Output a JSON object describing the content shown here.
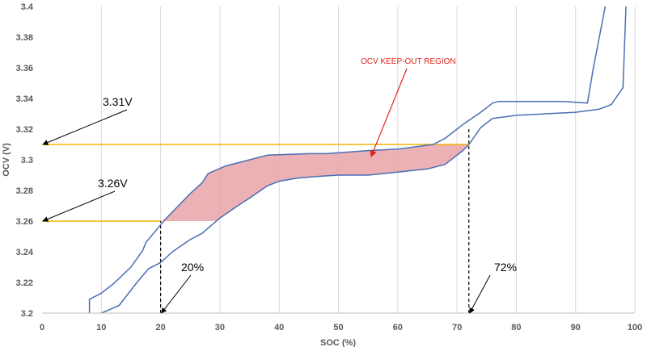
{
  "chart_data": {
    "type": "line",
    "xlabel": "SOC (%)",
    "ylabel": "OCV (V)",
    "xlim": [
      0,
      100
    ],
    "ylim": [
      3.2,
      3.4
    ],
    "xticks": [
      0,
      10,
      20,
      30,
      40,
      50,
      60,
      70,
      80,
      90,
      100
    ],
    "yticks": [
      3.2,
      3.22,
      3.24,
      3.26,
      3.28,
      3.3,
      3.32,
      3.34,
      3.36,
      3.38,
      3.4
    ],
    "ytick_labels": [
      "3.2",
      "3.22",
      "3.24",
      "3.26",
      "3.28",
      "3.3",
      "3.32",
      "3.34",
      "3.36",
      "3.38",
      "3.4"
    ],
    "grid": {
      "vertical": true,
      "horizontal": false
    },
    "line_color": "#4a6eb5",
    "series": [
      {
        "values_xy": [
          [
            8,
            3.2
          ],
          [
            8,
            3.209
          ],
          [
            10,
            3.213
          ],
          [
            12,
            3.219
          ],
          [
            15,
            3.23
          ],
          [
            17,
            3.241
          ],
          [
            17.5,
            3.246
          ],
          [
            19,
            3.253
          ],
          [
            21,
            3.262
          ],
          [
            23,
            3.27
          ],
          [
            25,
            3.278
          ],
          [
            27,
            3.285
          ],
          [
            28,
            3.291
          ],
          [
            31,
            3.296
          ],
          [
            35,
            3.3
          ],
          [
            38,
            3.303
          ],
          [
            45,
            3.304
          ],
          [
            48,
            3.304
          ],
          [
            55,
            3.306
          ],
          [
            60,
            3.307
          ],
          [
            64,
            3.309
          ],
          [
            66,
            3.31
          ],
          [
            68,
            3.314
          ],
          [
            71,
            3.323
          ],
          [
            74,
            3.331
          ],
          [
            76,
            3.337
          ],
          [
            77,
            3.338
          ],
          [
            80,
            3.338
          ],
          [
            88,
            3.338
          ],
          [
            92,
            3.337
          ],
          [
            93,
            3.36
          ],
          [
            95,
            3.4
          ]
        ]
      },
      {
        "values_xy": [
          [
            10,
            3.2
          ],
          [
            13,
            3.205
          ],
          [
            16,
            3.22
          ],
          [
            18,
            3.229
          ],
          [
            20,
            3.233
          ],
          [
            22,
            3.24
          ],
          [
            25,
            3.248
          ],
          [
            27,
            3.252
          ],
          [
            30,
            3.262
          ],
          [
            33,
            3.27
          ],
          [
            35,
            3.275
          ],
          [
            38,
            3.283
          ],
          [
            40,
            3.286
          ],
          [
            43,
            3.288
          ],
          [
            46,
            3.289
          ],
          [
            50,
            3.29
          ],
          [
            55,
            3.29
          ],
          [
            60,
            3.292
          ],
          [
            65,
            3.294
          ],
          [
            68,
            3.297
          ],
          [
            71,
            3.306
          ],
          [
            72,
            3.31
          ],
          [
            74,
            3.321
          ],
          [
            76,
            3.327
          ],
          [
            80,
            3.329
          ],
          [
            85,
            3.33
          ],
          [
            90,
            3.331
          ],
          [
            92,
            3.332
          ],
          [
            94,
            3.333
          ],
          [
            96,
            3.336
          ],
          [
            98,
            3.347
          ],
          [
            98.5,
            3.4
          ]
        ]
      }
    ],
    "keep_out_region": {
      "label": "OCV KEEP-OUT REGION",
      "color": "#e8a3a7",
      "upper": [
        [
          20,
          3.26
        ],
        [
          21,
          3.262
        ],
        [
          23,
          3.27
        ],
        [
          25,
          3.278
        ],
        [
          27,
          3.285
        ],
        [
          28,
          3.291
        ],
        [
          31,
          3.296
        ],
        [
          35,
          3.3
        ],
        [
          38,
          3.303
        ],
        [
          45,
          3.304
        ],
        [
          48,
          3.304
        ],
        [
          55,
          3.306
        ],
        [
          60,
          3.307
        ],
        [
          64,
          3.309
        ],
        [
          67,
          3.31
        ]
      ],
      "lower": [
        [
          72,
          3.31
        ],
        [
          71,
          3.306
        ],
        [
          68,
          3.297
        ],
        [
          65,
          3.294
        ],
        [
          60,
          3.292
        ],
        [
          55,
          3.29
        ],
        [
          50,
          3.29
        ],
        [
          46,
          3.289
        ],
        [
          43,
          3.288
        ],
        [
          40,
          3.286
        ],
        [
          38,
          3.283
        ],
        [
          35,
          3.275
        ],
        [
          33,
          3.27
        ],
        [
          30,
          3.262
        ],
        [
          29.5,
          3.26
        ]
      ],
      "arrow_from_label_to": [
        55.5,
        3.302
      ]
    },
    "reference_lines": {
      "color": "#f2b400",
      "horizontal": [
        {
          "y": 3.31,
          "x_from": 0,
          "x_to": 72
        },
        {
          "y": 3.26,
          "x_from": 0,
          "x_to": 20
        }
      ],
      "vertical_dashed": [
        {
          "x": 20,
          "y_from": 3.2,
          "y_to": 3.26
        },
        {
          "x": 72,
          "y_from": 3.2,
          "y_to": 3.32
        }
      ]
    },
    "annotations": [
      {
        "text": "3.31V",
        "points_to": [
          0,
          3.31
        ]
      },
      {
        "text": "3.26V",
        "points_to": [
          0,
          3.26
        ]
      },
      {
        "text": "20%",
        "points_to": [
          20,
          3.2
        ]
      },
      {
        "text": "72%",
        "points_to": [
          72,
          3.2
        ]
      }
    ]
  }
}
